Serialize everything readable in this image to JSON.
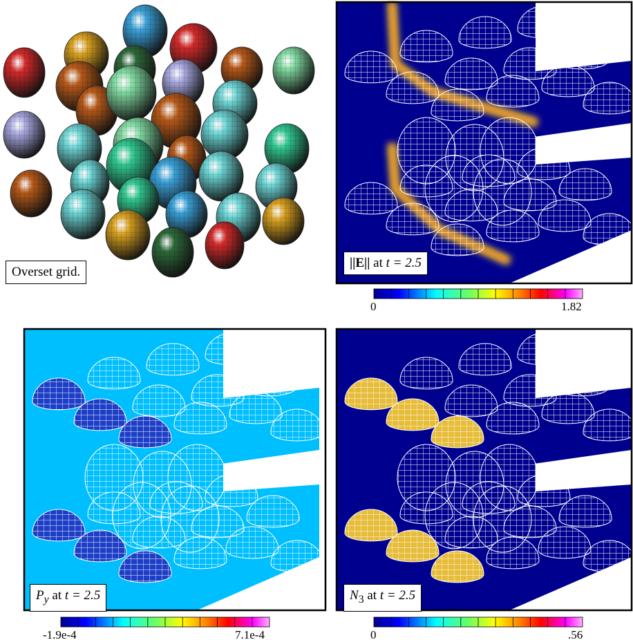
{
  "panels": [
    {
      "caption": {
        "text": "Overset grid."
      }
    },
    {
      "caption": {
        "symbol": "||E||",
        "text": "at",
        "equation": "t = 2.5"
      },
      "colorbar": {
        "min": "0",
        "max": "1.82"
      }
    },
    {
      "caption": {
        "symbol": "P",
        "subscript": "y",
        "text": "at",
        "equation": "t = 2.5"
      },
      "colorbar": {
        "min": "-1.9e-4",
        "max": "7.1e-4"
      }
    },
    {
      "caption": {
        "symbol": "N",
        "subscript": "3",
        "text": "at",
        "equation": "t = 2.5"
      },
      "colorbar": {
        "min": "0",
        "max": ".56"
      }
    }
  ]
}
